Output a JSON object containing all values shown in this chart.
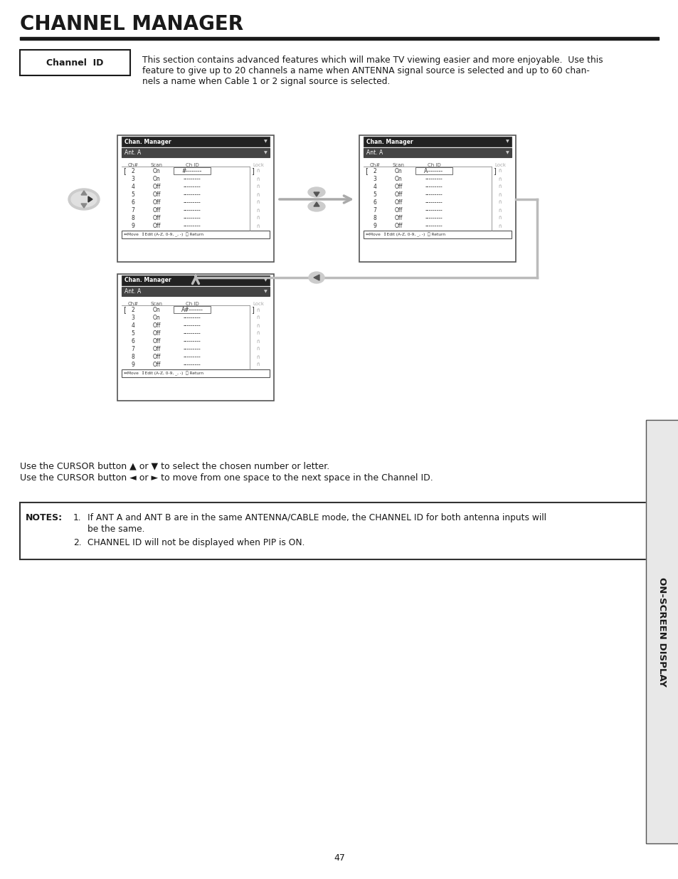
{
  "title": "CHANNEL MANAGER",
  "bg_color": "#ffffff",
  "title_color": "#1a1a1a",
  "section_label": "Channel  ID",
  "section_text_line1": "This section contains advanced features which will make TV viewing easier and more enjoyable.  Use this",
  "section_text_line2": "feature to give up to 20 channels a name when ANTENNA signal source is selected and up to 60 chan-",
  "section_text_line3": "nels a name when Cable 1 or 2 signal source is selected.",
  "cursor_text1": "Use the CURSOR button ▲ or ▼ to select the chosen number or letter.",
  "cursor_text2": "Use the CURSOR button ◄ or ► to move from one space to the next space in the Channel ID.",
  "notes_title": "NOTES:",
  "note1a": "If ANT A and ANT B are in the same ANTENNA/CABLE mode, the CHANNEL ID for both antenna inputs will",
  "note1b": "be the same.",
  "note2": "CHANNEL ID will not be displayed when PIP is ON.",
  "page_num": "47",
  "sidebar_text": "ON-SCREEN DISPLAY",
  "screen1_ch_id_row0": "#--------",
  "screen2_ch_id_row0": "A--------",
  "screen3_ch_id_row0": "A#-------",
  "screen_rows": [
    [
      "2",
      "On"
    ],
    [
      "3",
      "On"
    ],
    [
      "4",
      "Off"
    ],
    [
      "5",
      "Off"
    ],
    [
      "6",
      "Off"
    ],
    [
      "7",
      "Off"
    ],
    [
      "8",
      "Off"
    ],
    [
      "9",
      "Off"
    ]
  ]
}
